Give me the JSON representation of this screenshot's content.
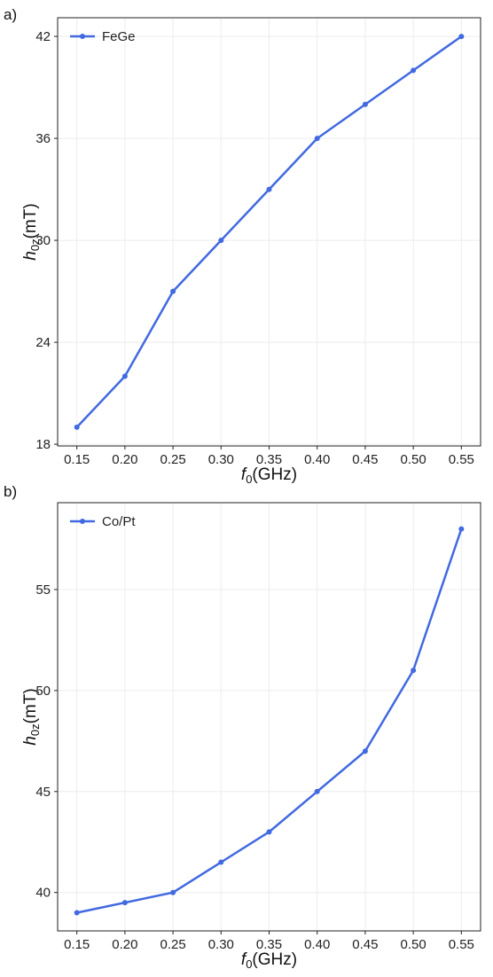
{
  "colors": {
    "series": "#4169e1",
    "grid": "#ececec",
    "frame": "#222222"
  },
  "chart_data": [
    {
      "type": "line",
      "panel_label": "a)",
      "xlabel": {
        "main": "f",
        "sub": "0",
        "unit": "(GHz)"
      },
      "ylabel": {
        "main": "h",
        "sub": "0z",
        "unit": "(mT)"
      },
      "x": [
        0.15,
        0.2,
        0.25,
        0.3,
        0.35,
        0.4,
        0.45,
        0.5,
        0.55
      ],
      "x_tick_labels": [
        "0.15",
        "0.20",
        "0.25",
        "0.30",
        "0.35",
        "0.40",
        "0.45",
        "0.50",
        "0.55"
      ],
      "y_ticks": [
        18,
        24,
        30,
        36,
        42
      ],
      "y_tick_labels": [
        "18",
        "24",
        "30",
        "36",
        "42"
      ],
      "xlim": [
        0.13,
        0.57
      ],
      "ylim": [
        17.9,
        43.1
      ],
      "grid": true,
      "legend_position": "top-left",
      "series": [
        {
          "name": "FeGe",
          "values": [
            19,
            22,
            27,
            30,
            33,
            36,
            38,
            40,
            42
          ]
        }
      ]
    },
    {
      "type": "line",
      "panel_label": "b)",
      "xlabel": {
        "main": "f",
        "sub": "0",
        "unit": "(GHz)"
      },
      "ylabel": {
        "main": "h",
        "sub": "0z",
        "unit": "(mT)"
      },
      "x": [
        0.15,
        0.2,
        0.25,
        0.3,
        0.35,
        0.4,
        0.45,
        0.5,
        0.55
      ],
      "x_tick_labels": [
        "0.15",
        "0.20",
        "0.25",
        "0.30",
        "0.35",
        "0.40",
        "0.45",
        "0.50",
        "0.55"
      ],
      "y_ticks": [
        40,
        45,
        50,
        55
      ],
      "y_tick_labels": [
        "40",
        "45",
        "50",
        "55"
      ],
      "xlim": [
        0.13,
        0.57
      ],
      "ylim": [
        38.1,
        59.3
      ],
      "grid": true,
      "legend_position": "top-left",
      "series": [
        {
          "name": "Co/Pt",
          "values": [
            39,
            39.5,
            40,
            41.5,
            43,
            45,
            47,
            51,
            58
          ]
        }
      ]
    }
  ]
}
